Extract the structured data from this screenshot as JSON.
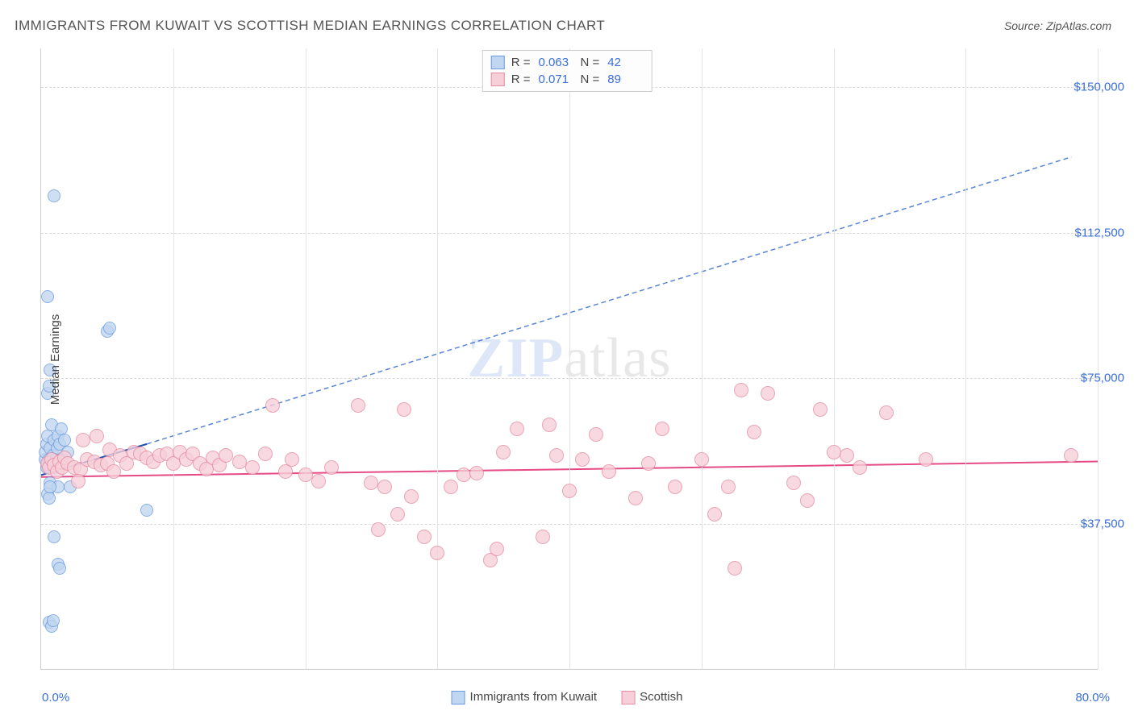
{
  "title": "IMMIGRANTS FROM KUWAIT VS SCOTTISH MEDIAN EARNINGS CORRELATION CHART",
  "source": "Source: ZipAtlas.com",
  "y_axis_label": "Median Earnings",
  "x_range": [
    0,
    80
  ],
  "y_range": [
    0,
    160000
  ],
  "y_ticks": [
    37500,
    75000,
    112500,
    150000
  ],
  "y_tick_labels": [
    "$37,500",
    "$75,000",
    "$112,500",
    "$150,000"
  ],
  "x_grid": [
    0,
    10,
    20,
    30,
    40,
    50,
    60,
    70,
    80
  ],
  "x_tick_left": "0.0%",
  "x_tick_right": "80.0%",
  "grid_color": "#d9d9d9",
  "tick_color": "#3a6fd8",
  "background_color": "#ffffff",
  "watermark": {
    "bold": "ZIP",
    "rest": "atlas"
  },
  "series": [
    {
      "name": "Immigrants from Kuwait",
      "color_fill": "#c1d6f0",
      "color_stroke": "#6a9be0",
      "marker_radius_px": 8,
      "R": "0.063",
      "N": "42",
      "trend_solid": {
        "x1": 0,
        "y1": 50000,
        "x2": 8,
        "y2": 58000,
        "color": "#1e4fb0",
        "width": 2
      },
      "trend_dash": {
        "x1": 8,
        "y1": 58000,
        "x2": 78,
        "y2": 132000,
        "color": "#5a86d6",
        "width": 1.5,
        "dash": "6,4"
      },
      "points": [
        [
          0.3,
          54000
        ],
        [
          0.3,
          56000
        ],
        [
          0.4,
          52000
        ],
        [
          0.4,
          58000
        ],
        [
          0.5,
          53000
        ],
        [
          0.5,
          60000
        ],
        [
          0.6,
          54000
        ],
        [
          0.6,
          52000
        ],
        [
          0.7,
          57000
        ],
        [
          0.7,
          48000
        ],
        [
          0.8,
          54000
        ],
        [
          0.8,
          63000
        ],
        [
          0.9,
          55000
        ],
        [
          1.0,
          52000
        ],
        [
          1.0,
          59000
        ],
        [
          1.1,
          54000
        ],
        [
          1.2,
          57000
        ],
        [
          1.3,
          47000
        ],
        [
          1.3,
          60000
        ],
        [
          1.4,
          58000
        ],
        [
          1.5,
          62000
        ],
        [
          1.6,
          54000
        ],
        [
          1.8,
          59000
        ],
        [
          2.0,
          56000
        ],
        [
          2.2,
          47000
        ],
        [
          0.5,
          71000
        ],
        [
          0.6,
          73000
        ],
        [
          0.7,
          77000
        ],
        [
          0.5,
          96000
        ],
        [
          1.0,
          122000
        ],
        [
          5.0,
          87000
        ],
        [
          5.2,
          88000
        ],
        [
          0.5,
          45000
        ],
        [
          0.6,
          44000
        ],
        [
          0.7,
          47000
        ],
        [
          1.0,
          34000
        ],
        [
          1.3,
          27000
        ],
        [
          1.4,
          26000
        ],
        [
          0.6,
          12000
        ],
        [
          0.8,
          11000
        ],
        [
          0.9,
          12500
        ],
        [
          8.0,
          41000
        ]
      ]
    },
    {
      "name": "Scottish",
      "color_fill": "#f7cfd9",
      "color_stroke": "#e58ca3",
      "marker_radius_px": 9,
      "R": "0.071",
      "N": "89",
      "trend_solid": {
        "x1": 0,
        "y1": 49500,
        "x2": 80,
        "y2": 53500,
        "color": "#e64b86",
        "width": 2
      },
      "points": [
        [
          0.5,
          53000
        ],
        [
          0.6,
          52000
        ],
        [
          0.8,
          54000
        ],
        [
          1.0,
          52500
        ],
        [
          1.2,
          51000
        ],
        [
          1.4,
          53500
        ],
        [
          1.6,
          52000
        ],
        [
          1.8,
          54500
        ],
        [
          2.0,
          53000
        ],
        [
          2.5,
          52000
        ],
        [
          3.0,
          51500
        ],
        [
          3.2,
          59000
        ],
        [
          3.5,
          54000
        ],
        [
          4.0,
          53500
        ],
        [
          4.2,
          60000
        ],
        [
          4.5,
          52500
        ],
        [
          5.0,
          53000
        ],
        [
          5.2,
          56500
        ],
        [
          5.5,
          51000
        ],
        [
          6.0,
          55000
        ],
        [
          6.5,
          53000
        ],
        [
          7.0,
          56000
        ],
        [
          7.5,
          55500
        ],
        [
          8.0,
          54500
        ],
        [
          8.5,
          53500
        ],
        [
          9.0,
          55000
        ],
        [
          9.5,
          55500
        ],
        [
          10.0,
          53000
        ],
        [
          10.5,
          56000
        ],
        [
          11.0,
          54000
        ],
        [
          11.5,
          55500
        ],
        [
          12.0,
          53000
        ],
        [
          12.5,
          51500
        ],
        [
          13.0,
          54500
        ],
        [
          13.5,
          52500
        ],
        [
          14.0,
          55000
        ],
        [
          15.0,
          53500
        ],
        [
          16.0,
          52000
        ],
        [
          17.0,
          55500
        ],
        [
          17.5,
          68000
        ],
        [
          18.5,
          51000
        ],
        [
          19.0,
          54000
        ],
        [
          20.0,
          50000
        ],
        [
          21.0,
          48500
        ],
        [
          22.0,
          52000
        ],
        [
          24.0,
          68000
        ],
        [
          25.0,
          48000
        ],
        [
          25.5,
          36000
        ],
        [
          26.0,
          47000
        ],
        [
          27.0,
          40000
        ],
        [
          27.5,
          67000
        ],
        [
          28.0,
          44500
        ],
        [
          29.0,
          34000
        ],
        [
          30.0,
          30000
        ],
        [
          31.0,
          47000
        ],
        [
          32.0,
          50000
        ],
        [
          33.0,
          50500
        ],
        [
          34.0,
          28000
        ],
        [
          34.5,
          31000
        ],
        [
          35.0,
          56000
        ],
        [
          36.0,
          62000
        ],
        [
          38.0,
          34000
        ],
        [
          38.5,
          63000
        ],
        [
          39.0,
          55000
        ],
        [
          40.0,
          46000
        ],
        [
          41.0,
          54000
        ],
        [
          42.0,
          60500
        ],
        [
          43.0,
          51000
        ],
        [
          45.0,
          44000
        ],
        [
          46.0,
          53000
        ],
        [
          47.0,
          62000
        ],
        [
          48.0,
          47000
        ],
        [
          50.0,
          54000
        ],
        [
          51.0,
          40000
        ],
        [
          52.0,
          47000
        ],
        [
          52.5,
          26000
        ],
        [
          53.0,
          72000
        ],
        [
          54.0,
          61000
        ],
        [
          55.0,
          71000
        ],
        [
          57.0,
          48000
        ],
        [
          58.0,
          43500
        ],
        [
          59.0,
          67000
        ],
        [
          60.0,
          56000
        ],
        [
          61.0,
          55000
        ],
        [
          62.0,
          52000
        ],
        [
          64.0,
          66000
        ],
        [
          67.0,
          54000
        ],
        [
          78.0,
          55000
        ],
        [
          2.8,
          48500
        ]
      ]
    }
  ],
  "legend_bottom": [
    {
      "label": "Immigrants from Kuwait",
      "fill": "#c1d6f0",
      "stroke": "#6a9be0"
    },
    {
      "label": "Scottish",
      "fill": "#f7cfd9",
      "stroke": "#e58ca3"
    }
  ]
}
